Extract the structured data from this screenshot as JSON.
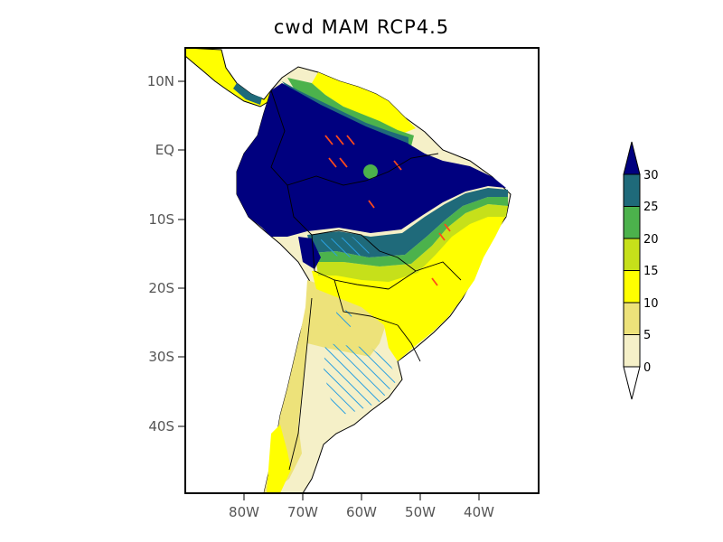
{
  "title": "cwd MAM RCP4.5",
  "axes": {
    "lat_ticks": [
      "10N",
      "EQ",
      "10S",
      "20S",
      "30S",
      "40S"
    ],
    "lon_ticks": [
      "80W",
      "70W",
      "60W",
      "50W",
      "40W"
    ]
  },
  "colorbar": {
    "levels": [
      "0",
      "5",
      "10",
      "15",
      "20",
      "25",
      "30"
    ],
    "colors": [
      "#f5f0c8",
      "#ede27a",
      "#ffff00",
      "#c6e01a",
      "#4cb24c",
      "#1f6a7a",
      "#00007f"
    ]
  },
  "hatch_colors": {
    "positive": "#ff4a1a",
    "negative": "#2aa0e0"
  }
}
